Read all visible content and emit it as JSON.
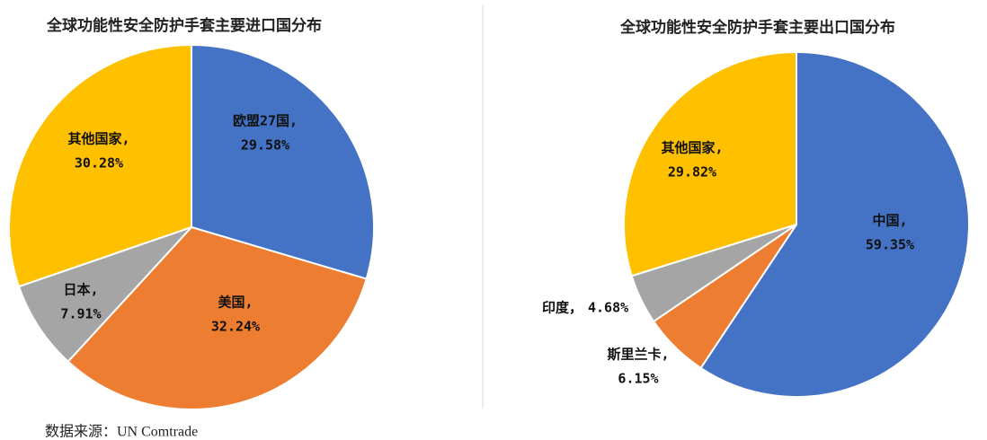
{
  "chart_data": [
    {
      "type": "pie",
      "title": "全球功能性安全防护手套主要进口国分布",
      "categories": [
        "欧盟27国,",
        "美国,",
        "日本,",
        "其他国家,"
      ],
      "values": [
        29.58,
        32.24,
        7.91,
        30.28
      ],
      "value_labels": [
        "29.58%",
        "32.24%",
        "7.91%",
        "30.28%"
      ],
      "colors": [
        "#4472c4",
        "#ed7d31",
        "#a5a5a5",
        "#ffc000"
      ]
    },
    {
      "type": "pie",
      "title": "全球功能性安全防护手套主要出口国分布",
      "categories": [
        "中国,",
        "斯里兰卡,",
        "印度，",
        "其他国家,"
      ],
      "values": [
        59.35,
        6.15,
        4.68,
        29.82
      ],
      "value_labels": [
        "59.35%",
        "6.15%",
        "4.68%",
        "29.82%"
      ],
      "colors": [
        "#4472c4",
        "#ed7d31",
        "#a5a5a5",
        "#ffc000"
      ]
    }
  ],
  "source": "数据来源：UN Comtrade"
}
